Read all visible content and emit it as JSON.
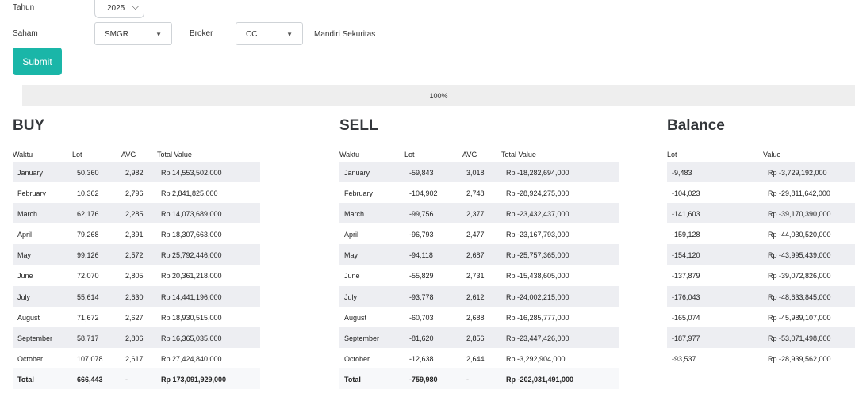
{
  "filters": {
    "tahun_label": "Tahun",
    "tahun_value": "2025",
    "saham_label": "Saham",
    "saham_value": "SMGR",
    "broker_label": "Broker",
    "broker_value": "CC",
    "broker_name": "Mandiri Sekuritas"
  },
  "submit_label": "Submit",
  "progress": {
    "value": 1.0,
    "text": "100%"
  },
  "buy": {
    "title": "BUY",
    "headers": [
      "Waktu",
      "Lot",
      "AVG",
      "Total Value"
    ],
    "rows": [
      [
        "January",
        "50,360",
        "2,982",
        "Rp 14,553,502,000"
      ],
      [
        "February",
        "10,362",
        "2,796",
        "Rp 2,841,825,000"
      ],
      [
        "March",
        "62,176",
        "2,285",
        "Rp 14,073,689,000"
      ],
      [
        "April",
        "79,268",
        "2,391",
        "Rp 18,307,663,000"
      ],
      [
        "May",
        "99,126",
        "2,572",
        "Rp 25,792,446,000"
      ],
      [
        "June",
        "72,070",
        "2,805",
        "Rp 20,361,218,000"
      ],
      [
        "July",
        "55,614",
        "2,630",
        "Rp 14,441,196,000"
      ],
      [
        "August",
        "71,672",
        "2,627",
        "Rp 18,930,515,000"
      ],
      [
        "September",
        "58,717",
        "2,806",
        "Rp 16,365,035,000"
      ],
      [
        "October",
        "107,078",
        "2,617",
        "Rp 27,424,840,000"
      ]
    ],
    "total": [
      "Total",
      "666,443",
      "-",
      "Rp 173,091,929,000"
    ]
  },
  "sell": {
    "title": "SELL",
    "headers": [
      "Waktu",
      "Lot",
      "AVG",
      "Total Value"
    ],
    "rows": [
      [
        "January",
        "-59,843",
        "3,018",
        "Rp -18,282,694,000"
      ],
      [
        "February",
        "-104,902",
        "2,748",
        "Rp -28,924,275,000"
      ],
      [
        "March",
        "-99,756",
        "2,377",
        "Rp -23,432,437,000"
      ],
      [
        "April",
        "-96,793",
        "2,477",
        "Rp -23,167,793,000"
      ],
      [
        "May",
        "-94,118",
        "2,687",
        "Rp -25,757,365,000"
      ],
      [
        "June",
        "-55,829",
        "2,731",
        "Rp -15,438,605,000"
      ],
      [
        "July",
        "-93,778",
        "2,612",
        "Rp -24,002,215,000"
      ],
      [
        "August",
        "-60,703",
        "2,688",
        "Rp -16,285,777,000"
      ],
      [
        "September",
        "-81,620",
        "2,856",
        "Rp -23,447,426,000"
      ],
      [
        "October",
        "-12,638",
        "2,644",
        "Rp -3,292,904,000"
      ]
    ],
    "total": [
      "Total",
      "-759,980",
      "-",
      "Rp -202,031,491,000"
    ]
  },
  "balance": {
    "title": "Balance",
    "headers": [
      "Lot",
      "Value"
    ],
    "rows": [
      [
        "-9,483",
        "Rp -3,729,192,000"
      ],
      [
        "-104,023",
        "Rp -29,811,642,000"
      ],
      [
        "-141,603",
        "Rp -39,170,390,000"
      ],
      [
        "-159,128",
        "Rp -44,030,520,000"
      ],
      [
        "-154,120",
        "Rp -43,995,439,000"
      ],
      [
        "-137,879",
        "Rp -39,072,826,000"
      ],
      [
        "-176,043",
        "Rp -48,633,845,000"
      ],
      [
        "-165,074",
        "Rp -45,989,107,000"
      ],
      [
        "-187,977",
        "Rp -53,071,498,000"
      ],
      [
        "-93,537",
        "Rp -28,939,562,000"
      ]
    ]
  }
}
